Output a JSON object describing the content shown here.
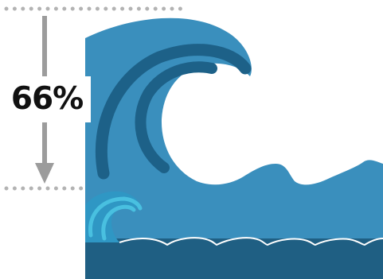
{
  "percentage_label": "66%",
  "height_ratio": 0.66,
  "colors": {
    "big_wave": "#3a8fbd",
    "wave_curl_dark": "#1d6188",
    "small_wave": "#2f97c4",
    "small_wave_accent": "#49c0e0",
    "sea_dark": "#1f5f83",
    "sea_crest_line": "#ffffff",
    "marker_dots": "#b3b3b3",
    "arrow": "#9c9c9c",
    "label_text": "#111111"
  },
  "icons": {
    "big_wave": "tsunami-wave-icon",
    "small_wave": "ordinary-wave-icon",
    "arrow": "down-arrow-icon"
  }
}
